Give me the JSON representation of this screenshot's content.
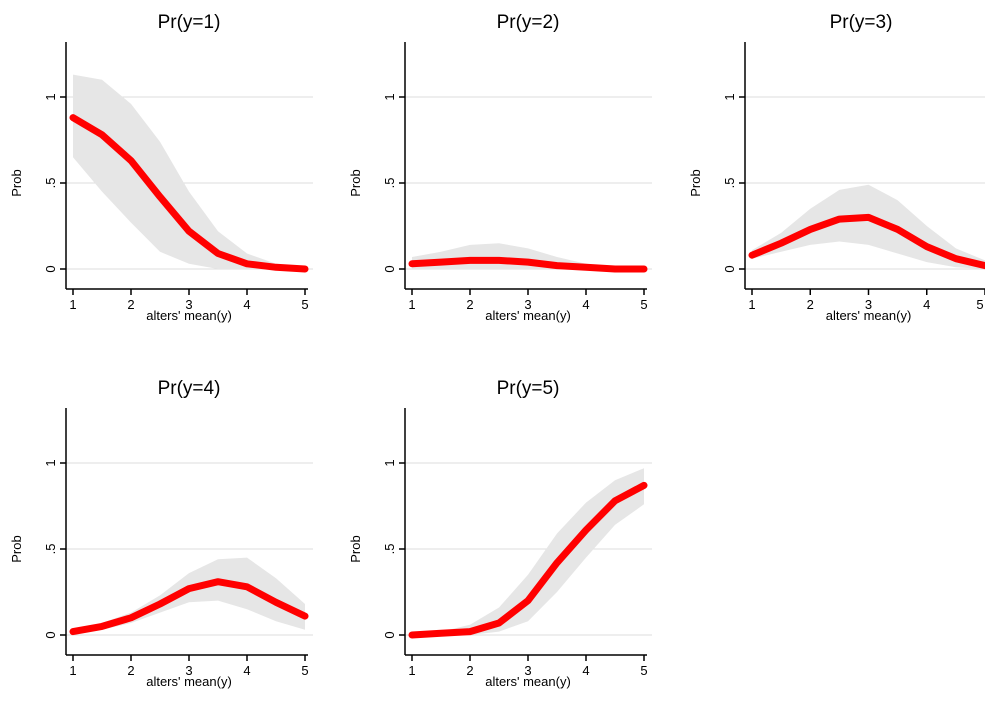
{
  "chart_data": [
    {
      "type": "line",
      "title": "Pr(y=1)",
      "xlabel": "alters' mean(y)",
      "ylabel": "Prob",
      "xlim": [
        1,
        5
      ],
      "ylim": [
        0,
        1.2
      ],
      "xticks": [
        "1",
        "2",
        "3",
        "4",
        "5"
      ],
      "yticks": [
        "0",
        ".5",
        "1"
      ],
      "grid": true,
      "colors": {
        "line": "#ff0000",
        "band": "#e6e6e6",
        "grid": "#dcdcdc"
      },
      "x": [
        1,
        1.5,
        2,
        2.5,
        3,
        3.5,
        4,
        4.5,
        5
      ],
      "y": [
        0.88,
        0.78,
        0.63,
        0.42,
        0.22,
        0.09,
        0.03,
        0.01,
        0.0
      ],
      "lower": [
        0.65,
        0.45,
        0.27,
        0.1,
        0.03,
        0.0,
        0.0,
        0.0,
        0.0
      ],
      "upper": [
        1.13,
        1.1,
        0.96,
        0.74,
        0.45,
        0.22,
        0.09,
        0.03,
        0.01
      ]
    },
    {
      "type": "line",
      "title": "Pr(y=2)",
      "xlabel": "alters' mean(y)",
      "ylabel": "Prob",
      "xlim": [
        1,
        5
      ],
      "ylim": [
        0,
        1.2
      ],
      "xticks": [
        "1",
        "2",
        "3",
        "4",
        "5"
      ],
      "yticks": [
        "0",
        ".5",
        "1"
      ],
      "grid": true,
      "colors": {
        "line": "#ff0000",
        "band": "#e6e6e6",
        "grid": "#dcdcdc"
      },
      "x": [
        1,
        1.5,
        2,
        2.5,
        3,
        3.5,
        4,
        4.5,
        5
      ],
      "y": [
        0.03,
        0.04,
        0.05,
        0.05,
        0.04,
        0.02,
        0.01,
        0.0,
        0.0
      ],
      "lower": [
        0.0,
        0.0,
        0.0,
        0.0,
        0.0,
        0.0,
        0.0,
        0.0,
        0.0
      ],
      "upper": [
        0.07,
        0.1,
        0.14,
        0.15,
        0.12,
        0.07,
        0.03,
        0.01,
        0.0
      ]
    },
    {
      "type": "line",
      "title": "Pr(y=3)",
      "xlabel": "alters' mean(y)",
      "ylabel": "Prob",
      "xlim": [
        1,
        5
      ],
      "ylim": [
        0,
        1.2
      ],
      "xticks": [
        "1",
        "2",
        "3",
        "4",
        "5"
      ],
      "yticks": [
        "0",
        ".5",
        "1"
      ],
      "grid": true,
      "colors": {
        "line": "#ff0000",
        "band": "#e6e6e6",
        "grid": "#dcdcdc"
      },
      "x": [
        1,
        1.5,
        2,
        2.5,
        3,
        3.5,
        4,
        4.5,
        5
      ],
      "y": [
        0.08,
        0.15,
        0.23,
        0.29,
        0.3,
        0.23,
        0.13,
        0.06,
        0.02
      ],
      "lower": [
        0.06,
        0.1,
        0.14,
        0.16,
        0.14,
        0.09,
        0.04,
        0.01,
        0.0
      ],
      "upper": [
        0.11,
        0.21,
        0.35,
        0.46,
        0.49,
        0.4,
        0.25,
        0.12,
        0.05
      ]
    },
    {
      "type": "line",
      "title": "Pr(y=4)",
      "xlabel": "alters' mean(y)",
      "ylabel": "Prob",
      "xlim": [
        1,
        5
      ],
      "ylim": [
        0,
        1.2
      ],
      "xticks": [
        "1",
        "2",
        "3",
        "4",
        "5"
      ],
      "yticks": [
        "0",
        ".5",
        "1"
      ],
      "grid": true,
      "colors": {
        "line": "#ff0000",
        "band": "#e6e6e6",
        "grid": "#dcdcdc"
      },
      "x": [
        1,
        1.5,
        2,
        2.5,
        3,
        3.5,
        4,
        4.5,
        5
      ],
      "y": [
        0.02,
        0.05,
        0.1,
        0.18,
        0.27,
        0.31,
        0.28,
        0.19,
        0.11
      ],
      "lower": [
        0.01,
        0.03,
        0.07,
        0.13,
        0.19,
        0.2,
        0.15,
        0.08,
        0.03
      ],
      "upper": [
        0.03,
        0.07,
        0.13,
        0.23,
        0.36,
        0.44,
        0.45,
        0.33,
        0.18
      ]
    },
    {
      "type": "line",
      "title": "Pr(y=5)",
      "xlabel": "alters' mean(y)",
      "ylabel": "Prob",
      "xlim": [
        1,
        5
      ],
      "ylim": [
        0,
        1.2
      ],
      "xticks": [
        "1",
        "2",
        "3",
        "4",
        "5"
      ],
      "yticks": [
        "0",
        ".5",
        "1"
      ],
      "grid": true,
      "colors": {
        "line": "#ff0000",
        "band": "#e6e6e6",
        "grid": "#dcdcdc"
      },
      "x": [
        1,
        1.5,
        2,
        2.5,
        3,
        3.5,
        4,
        4.5,
        5
      ],
      "y": [
        0.0,
        0.01,
        0.02,
        0.07,
        0.2,
        0.42,
        0.61,
        0.78,
        0.87
      ],
      "lower": [
        0.0,
        0.0,
        0.0,
        0.02,
        0.08,
        0.25,
        0.45,
        0.64,
        0.76
      ],
      "upper": [
        0.01,
        0.02,
        0.06,
        0.16,
        0.35,
        0.59,
        0.77,
        0.9,
        0.97
      ]
    }
  ]
}
